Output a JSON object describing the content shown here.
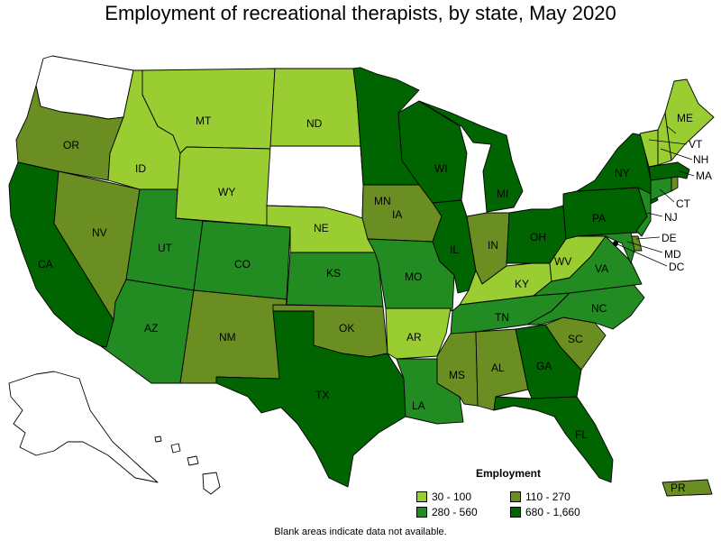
{
  "title": "Employment of recreational therapists, by state, May 2020",
  "legend": {
    "title": "Employment",
    "items": [
      {
        "label": "30 - 100",
        "color": "#9acd32"
      },
      {
        "label": "110 - 270",
        "color": "#6b8e23"
      },
      {
        "label": "280 - 560",
        "color": "#228b22"
      },
      {
        "label": "680 - 1,660",
        "color": "#006400"
      }
    ]
  },
  "note": "Blank areas indicate data not available.",
  "colors": {
    "light": "#9acd32",
    "olive": "#6b8e23",
    "mid": "#228b22",
    "dark": "#006400",
    "nodata": "#ffffff"
  },
  "states": [
    {
      "abbr": "WA",
      "bin": "nodata"
    },
    {
      "abbr": "OR",
      "bin": "olive"
    },
    {
      "abbr": "CA",
      "bin": "dark"
    },
    {
      "abbr": "ID",
      "bin": "light"
    },
    {
      "abbr": "NV",
      "bin": "olive"
    },
    {
      "abbr": "MT",
      "bin": "light"
    },
    {
      "abbr": "WY",
      "bin": "light"
    },
    {
      "abbr": "UT",
      "bin": "mid"
    },
    {
      "abbr": "AZ",
      "bin": "mid"
    },
    {
      "abbr": "CO",
      "bin": "mid"
    },
    {
      "abbr": "NM",
      "bin": "olive"
    },
    {
      "abbr": "ND",
      "bin": "light"
    },
    {
      "abbr": "SD",
      "bin": "nodata"
    },
    {
      "abbr": "NE",
      "bin": "light"
    },
    {
      "abbr": "KS",
      "bin": "mid"
    },
    {
      "abbr": "OK",
      "bin": "olive"
    },
    {
      "abbr": "TX",
      "bin": "dark"
    },
    {
      "abbr": "MN",
      "bin": "dark"
    },
    {
      "abbr": "IA",
      "bin": "olive"
    },
    {
      "abbr": "MO",
      "bin": "mid"
    },
    {
      "abbr": "AR",
      "bin": "light"
    },
    {
      "abbr": "LA",
      "bin": "mid"
    },
    {
      "abbr": "WI",
      "bin": "dark"
    },
    {
      "abbr": "IL",
      "bin": "dark"
    },
    {
      "abbr": "MI",
      "bin": "dark"
    },
    {
      "abbr": "IN",
      "bin": "olive"
    },
    {
      "abbr": "OH",
      "bin": "dark"
    },
    {
      "abbr": "KY",
      "bin": "light"
    },
    {
      "abbr": "TN",
      "bin": "mid"
    },
    {
      "abbr": "MS",
      "bin": "olive"
    },
    {
      "abbr": "AL",
      "bin": "olive"
    },
    {
      "abbr": "GA",
      "bin": "dark"
    },
    {
      "abbr": "FL",
      "bin": "dark"
    },
    {
      "abbr": "SC",
      "bin": "olive"
    },
    {
      "abbr": "NC",
      "bin": "mid"
    },
    {
      "abbr": "VA",
      "bin": "mid"
    },
    {
      "abbr": "WV",
      "bin": "light"
    },
    {
      "abbr": "PA",
      "bin": "dark"
    },
    {
      "abbr": "NY",
      "bin": "dark"
    },
    {
      "abbr": "ME",
      "bin": "light"
    },
    {
      "abbr": "VT",
      "bin": "light"
    },
    {
      "abbr": "NH",
      "bin": "light"
    },
    {
      "abbr": "MA",
      "bin": "dark"
    },
    {
      "abbr": "RI",
      "bin": "olive"
    },
    {
      "abbr": "CT",
      "bin": "mid"
    },
    {
      "abbr": "NJ",
      "bin": "mid"
    },
    {
      "abbr": "DE",
      "bin": "olive"
    },
    {
      "abbr": "MD",
      "bin": "mid"
    },
    {
      "abbr": "DC",
      "bin": "olive"
    },
    {
      "abbr": "AK",
      "bin": "nodata"
    },
    {
      "abbr": "HI",
      "bin": "nodata"
    },
    {
      "abbr": "PR",
      "bin": "olive"
    }
  ]
}
